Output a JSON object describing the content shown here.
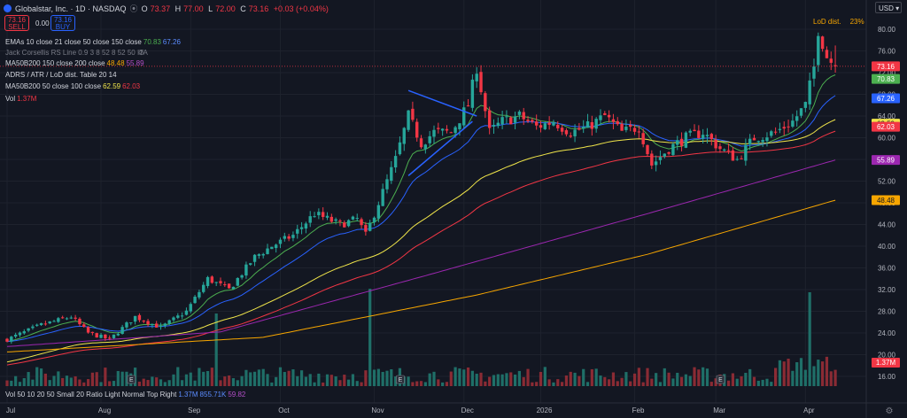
{
  "header": {
    "title": "Globalstar, Inc. · 1D · NASDAQ",
    "open_label": "O",
    "open": "73.37",
    "high_label": "H",
    "high": "77.00",
    "low_label": "L",
    "low": "72.00",
    "close_label": "C",
    "close": "73.16",
    "change": "+0.03 (+0.04%)",
    "sell_price": "73.16",
    "sell_label": "SELL",
    "spread": "0.00",
    "buy_price": "73.16",
    "buy_label": "BUY",
    "currency": "USD"
  },
  "indicators": [
    {
      "label": "EMAs 10 close 21 close 50 close 150 close",
      "v1": "70.83",
      "v2": "67.26",
      "c1": "#4caf50",
      "c2": "#2962ff"
    },
    {
      "label": "Jack Corsellis RS Line 0.9 3 8 52 8 52 50 ITA",
      "v1": "",
      "v2": "",
      "c1": "#787b86",
      "c2": "#787b86"
    },
    {
      "label": "MA50B200 150 close 200 close",
      "v1": "48.48",
      "v2": "55.89",
      "c1": "#f7a600",
      "c2": "#9c27b0"
    },
    {
      "label": "ADRS / ATR / LoD dist. Table 20 14",
      "v1": "",
      "v2": "",
      "c1": "#d1d4dc",
      "c2": "#d1d4dc"
    },
    {
      "label": "MA50B200 50 close 100 close",
      "v1": "62.59",
      "v2": "62.03",
      "c1": "#f0e54a",
      "c2": "#f23645"
    },
    {
      "label": "Vol",
      "v1": "1.37M",
      "v2": "",
      "c1": "#f23645",
      "c2": "#f23645"
    }
  ],
  "lod": {
    "label": "LoD dist.",
    "value": "23%"
  },
  "volume_legend": {
    "label": "Vol 50 10 20 50 Small 20 Ratio Light Normal Top Right",
    "v1": "1.37M",
    "v2": "855.71K",
    "v3": "59.82"
  },
  "colors": {
    "up": "#26a69a",
    "down": "#f23645",
    "background": "#131722",
    "grid": "#1e222d",
    "ema10": "#4caf50",
    "ema21": "#2962ff",
    "ma50": "#f0e54a",
    "ma100": "#f23645",
    "ma150": "#f7a600",
    "ma200": "#9c27b0",
    "trendline": "#2962ff"
  },
  "chart_data": {
    "type": "candlestick",
    "y_ticks": [
      16,
      20,
      24,
      28,
      32,
      36,
      40,
      44,
      48,
      52,
      56,
      60,
      64,
      68,
      72,
      76,
      80
    ],
    "ylim": [
      14.5,
      82.5
    ],
    "x_labels": [
      "Jul",
      "Aug",
      "Sep",
      "Oct",
      "Nov",
      "Dec",
      "2026",
      "Feb",
      "Mar",
      "Apr"
    ],
    "x_label_index": [
      0,
      22,
      43,
      64,
      86,
      107,
      125,
      147,
      166,
      187
    ],
    "num_bars": 195,
    "anchors": [
      [
        0,
        22.8
      ],
      [
        8,
        25.5
      ],
      [
        15,
        27
      ],
      [
        19,
        24
      ],
      [
        24,
        22.8
      ],
      [
        30,
        27
      ],
      [
        36,
        25
      ],
      [
        42,
        28
      ],
      [
        47,
        34
      ],
      [
        52,
        32
      ],
      [
        58,
        38
      ],
      [
        62,
        40
      ],
      [
        67,
        42
      ],
      [
        72,
        46
      ],
      [
        78,
        44
      ],
      [
        82,
        45
      ],
      [
        84,
        42
      ],
      [
        88,
        50
      ],
      [
        91,
        56
      ],
      [
        94,
        64
      ],
      [
        97,
        59
      ],
      [
        100,
        61
      ],
      [
        104,
        61
      ],
      [
        108,
        66
      ],
      [
        110,
        73
      ],
      [
        113,
        61
      ],
      [
        116,
        63
      ],
      [
        120,
        64
      ],
      [
        124,
        62
      ],
      [
        128,
        63
      ],
      [
        132,
        61
      ],
      [
        136,
        62
      ],
      [
        140,
        64
      ],
      [
        144,
        61
      ],
      [
        148,
        62
      ],
      [
        151,
        55
      ],
      [
        155,
        58
      ],
      [
        159,
        60
      ],
      [
        163,
        61
      ],
      [
        167,
        58
      ],
      [
        171,
        56
      ],
      [
        175,
        60
      ],
      [
        180,
        61
      ],
      [
        184,
        63
      ],
      [
        187,
        66
      ],
      [
        189,
        73
      ],
      [
        190,
        80
      ],
      [
        192,
        75
      ],
      [
        194,
        73.16
      ]
    ],
    "markers": [
      {
        "bar": 29,
        "label": "E"
      },
      {
        "bar": 92,
        "label": "E"
      },
      {
        "bar": 167,
        "label": "E"
      }
    ],
    "trendlines": [
      [
        [
          94,
          68.7
        ],
        [
          110,
          64
        ]
      ],
      [
        [
          94,
          53
        ],
        [
          109,
          63
        ]
      ]
    ],
    "hline": 73.16,
    "price_tags": [
      {
        "value": "73.16",
        "y": 73.16,
        "bg": "#f23645"
      },
      {
        "value": "70.83",
        "y": 70.83,
        "bg": "#4caf50"
      },
      {
        "value": "67.26",
        "y": 67.26,
        "bg": "#2962ff"
      },
      {
        "value": "62.59",
        "y": 62.59,
        "bg": "#f0e54a"
      },
      {
        "value": "62.03",
        "y": 62.03,
        "bg": "#f23645"
      },
      {
        "value": "55.89",
        "y": 55.89,
        "bg": "#9c27b0"
      },
      {
        "value": "48.48",
        "y": 48.48,
        "bg": "#f7a600"
      }
    ],
    "volume_tag": "1.37M",
    "volume_spikes": [
      [
        49,
        28
      ],
      [
        85,
        32
      ],
      [
        188,
        35
      ]
    ],
    "ma_series": [
      {
        "color": "#4caf50",
        "len": 10,
        "ema": true
      },
      {
        "color": "#2962ff",
        "len": 21,
        "ema": true
      },
      {
        "color": "#f0e54a",
        "len": 55,
        "ema": false,
        "start": 22,
        "seed": 18.5
      },
      {
        "color": "#f23645",
        "len": 80,
        "ema": false,
        "start": 21.5,
        "seed": 18
      },
      {
        "color": "#f7a600",
        "len": 0,
        "line": [
          [
            0,
            20.5
          ],
          [
            60,
            23.2
          ],
          [
            110,
            31
          ],
          [
            150,
            38.5
          ],
          [
            194,
            48.48
          ]
        ]
      },
      {
        "color": "#9c27b0",
        "len": 0,
        "line": [
          [
            0,
            21.5
          ],
          [
            50,
            24.2
          ],
          [
            100,
            35
          ],
          [
            150,
            46
          ],
          [
            194,
            55.89
          ]
        ]
      }
    ]
  }
}
